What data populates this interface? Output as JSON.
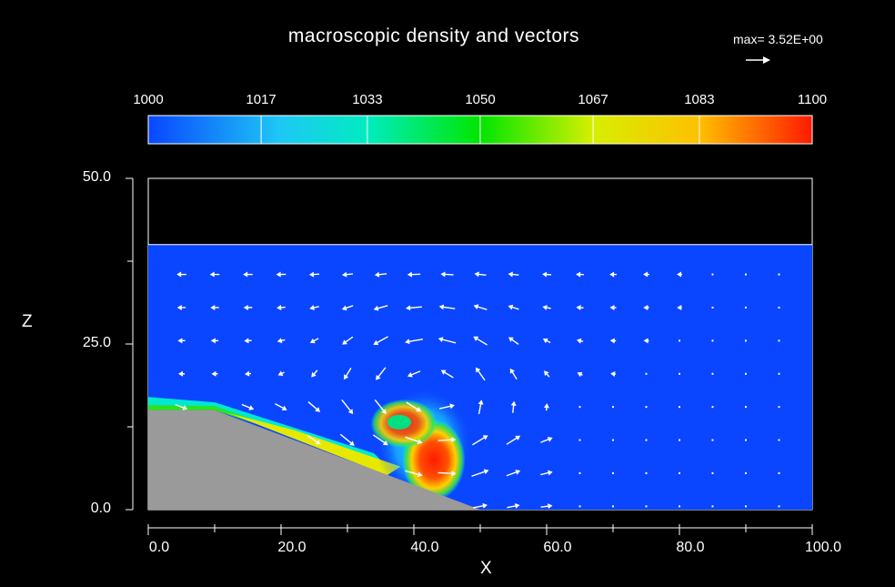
{
  "chart_data": {
    "type": "heatmap",
    "title": "macroscopic density and vectors",
    "max_label": "max= 3.52E+00",
    "xlabel": "X",
    "ylabel": "Z",
    "xlim": [
      0,
      100
    ],
    "zlim": [
      0,
      50
    ],
    "x_tick_labels": [
      "0.0",
      "20.0",
      "40.0",
      "60.0",
      "80.0",
      "100.0"
    ],
    "x_tick_values": [
      0,
      20,
      40,
      60,
      80,
      100
    ],
    "x_minor_ticks": [
      10,
      30,
      50,
      70,
      90
    ],
    "z_tick_labels": [
      "0.0",
      "25.0",
      "50.0"
    ],
    "z_tick_values": [
      0,
      25,
      50
    ],
    "z_minor_ticks": [
      12.5,
      37.5
    ],
    "colorbar": {
      "min": 1000,
      "max": 1100,
      "labels": [
        "1000",
        "1017",
        "1033",
        "1050",
        "1067",
        "1083",
        "1100"
      ],
      "values": [
        1000,
        1017,
        1033,
        1050,
        1067,
        1083,
        1100
      ]
    },
    "water_level_z": 40,
    "background_density": 1000,
    "slope_polygon": [
      [
        0,
        0
      ],
      [
        0,
        15
      ],
      [
        10,
        15
      ],
      [
        50,
        0
      ]
    ],
    "dense_current": {
      "max_density": 1100,
      "region_x": [
        0,
        48
      ],
      "core_x": [
        36,
        48
      ],
      "head_top_z": 17
    },
    "vector_grid_x": [
      5,
      10,
      15,
      20,
      25,
      30,
      35,
      40,
      45,
      50,
      55,
      60,
      65,
      70,
      75,
      80,
      85,
      90,
      95
    ],
    "vector_grid_z": [
      0.5,
      5.5,
      10.5,
      15.5,
      20.5,
      25.5,
      30.5,
      35.5
    ],
    "colors": {
      "background": "#000000",
      "slope": "#9a9a9a",
      "water": "#0a46ff",
      "vectors": "#ffffff"
    }
  }
}
